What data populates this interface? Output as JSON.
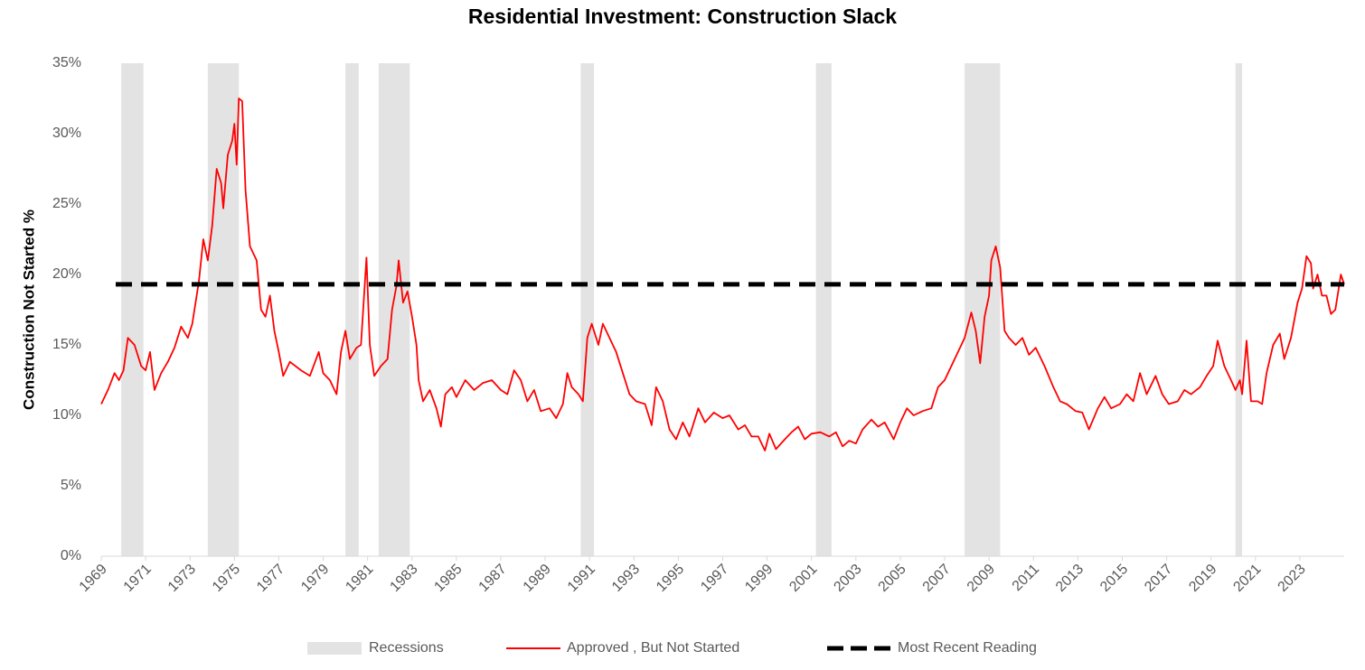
{
  "chart_data": {
    "type": "line",
    "title": "Residential Investment: Construction Slack",
    "y_label": "Construction  Not Started %",
    "xlim": [
      1969,
      2025
    ],
    "xticks": [
      1969,
      1971,
      1973,
      1975,
      1977,
      1979,
      1981,
      1983,
      1985,
      1987,
      1989,
      1991,
      1993,
      1995,
      1997,
      1999,
      2001,
      2003,
      2005,
      2007,
      2009,
      2011,
      2013,
      2015,
      2017,
      2019,
      2021,
      2023
    ],
    "ylim": [
      0,
      35
    ],
    "yticks": [
      {
        "value": 0,
        "label": "0%"
      },
      {
        "value": 5,
        "label": "5%"
      },
      {
        "value": 10,
        "label": "10%"
      },
      {
        "value": 15,
        "label": "15%"
      },
      {
        "value": 20,
        "label": "20%"
      },
      {
        "value": 25,
        "label": "25%"
      },
      {
        "value": 30,
        "label": "30%"
      },
      {
        "value": 35,
        "label": "35%"
      }
    ],
    "recessions": {
      "name": "Recessions",
      "color": "#e3e3e3",
      "ranges": [
        [
          1969.9,
          1970.9
        ],
        [
          1973.8,
          1975.2
        ],
        [
          1980.0,
          1980.6
        ],
        [
          1981.5,
          1982.9
        ],
        [
          1990.6,
          1991.2
        ],
        [
          2001.2,
          2001.9
        ],
        [
          2007.9,
          2009.5
        ],
        [
          2020.1,
          2020.4
        ]
      ]
    },
    "reference": {
      "name": "Most Recent Reading",
      "value": 19.3,
      "color": "#000000"
    },
    "series": [
      {
        "name": "Approved , But Not Started",
        "color": "#ff0000",
        "x": [
          1969.0,
          1969.3,
          1969.6,
          1969.8,
          1970.0,
          1970.2,
          1970.5,
          1970.8,
          1971.0,
          1971.2,
          1971.4,
          1971.7,
          1972.0,
          1972.3,
          1972.6,
          1972.9,
          1973.1,
          1973.4,
          1973.6,
          1973.8,
          1974.0,
          1974.2,
          1974.4,
          1974.5,
          1974.7,
          1974.9,
          1975.0,
          1975.1,
          1975.2,
          1975.35,
          1975.5,
          1975.7,
          1976.0,
          1976.2,
          1976.4,
          1976.6,
          1976.8,
          1977.0,
          1977.2,
          1977.5,
          1978.0,
          1978.4,
          1978.8,
          1979.0,
          1979.3,
          1979.6,
          1979.8,
          1980.0,
          1980.2,
          1980.5,
          1980.7,
          1980.95,
          1981.1,
          1981.3,
          1981.6,
          1981.9,
          1982.1,
          1982.3,
          1982.4,
          1982.6,
          1982.8,
          1983.0,
          1983.2,
          1983.3,
          1983.5,
          1983.8,
          1984.1,
          1984.3,
          1984.5,
          1984.8,
          1985.0,
          1985.4,
          1985.8,
          1986.2,
          1986.6,
          1987.0,
          1987.3,
          1987.6,
          1987.9,
          1988.2,
          1988.5,
          1988.8,
          1989.2,
          1989.5,
          1989.8,
          1990.0,
          1990.2,
          1990.5,
          1990.7,
          1990.9,
          1991.1,
          1991.4,
          1991.6,
          1991.9,
          1992.2,
          1992.5,
          1992.8,
          1993.1,
          1993.5,
          1993.8,
          1994.0,
          1994.3,
          1994.6,
          1994.9,
          1995.2,
          1995.5,
          1995.9,
          1996.2,
          1996.6,
          1997.0,
          1997.3,
          1997.7,
          1998.0,
          1998.3,
          1998.6,
          1998.9,
          1999.1,
          1999.4,
          1999.8,
          2000.1,
          2000.4,
          2000.7,
          2001.0,
          2001.4,
          2001.8,
          2002.1,
          2002.4,
          2002.7,
          2003.0,
          2003.3,
          2003.7,
          2004.0,
          2004.3,
          2004.7,
          2005.0,
          2005.3,
          2005.6,
          2006.0,
          2006.4,
          2006.7,
          2007.0,
          2007.3,
          2007.6,
          2007.9,
          2008.2,
          2008.4,
          2008.6,
          2008.8,
          2009.0,
          2009.1,
          2009.3,
          2009.5,
          2009.7,
          2009.9,
          2010.2,
          2010.5,
          2010.8,
          2011.1,
          2011.5,
          2011.9,
          2012.2,
          2012.5,
          2012.9,
          2013.2,
          2013.5,
          2013.9,
          2014.2,
          2014.5,
          2014.9,
          2015.2,
          2015.5,
          2015.8,
          2016.1,
          2016.5,
          2016.8,
          2017.1,
          2017.5,
          2017.8,
          2018.1,
          2018.5,
          2018.8,
          2019.1,
          2019.3,
          2019.6,
          2019.9,
          2020.1,
          2020.3,
          2020.4,
          2020.6,
          2020.8,
          2021.1,
          2021.3,
          2021.5,
          2021.8,
          2022.1,
          2022.3,
          2022.6,
          2022.9,
          2023.1,
          2023.3,
          2023.5,
          2023.6,
          2023.8,
          2024.0,
          2024.2,
          2024.4,
          2024.6,
          2024.75,
          2024.85,
          2025.0
        ],
        "values": [
          10.8,
          11.8,
          13.0,
          12.5,
          13.2,
          15.5,
          15.0,
          13.5,
          13.2,
          14.5,
          11.8,
          13.0,
          13.8,
          14.8,
          16.3,
          15.5,
          16.5,
          19.5,
          22.5,
          21.0,
          23.5,
          27.5,
          26.5,
          24.7,
          28.5,
          29.5,
          30.7,
          27.8,
          32.5,
          32.3,
          26.0,
          22.0,
          21.0,
          17.5,
          17.0,
          18.5,
          16.0,
          14.5,
          12.8,
          13.8,
          13.2,
          12.8,
          14.5,
          13.0,
          12.5,
          11.5,
          14.5,
          16.0,
          14.0,
          14.8,
          15.0,
          21.2,
          15.0,
          12.8,
          13.5,
          14.0,
          17.5,
          19.2,
          21.0,
          18.0,
          18.8,
          17.0,
          15.0,
          12.5,
          11.0,
          11.8,
          10.5,
          9.2,
          11.5,
          12.0,
          11.3,
          12.5,
          11.8,
          12.3,
          12.5,
          11.8,
          11.5,
          13.2,
          12.5,
          11.0,
          11.8,
          10.3,
          10.5,
          9.8,
          10.8,
          13.0,
          12.0,
          11.5,
          11.0,
          15.5,
          16.5,
          15.0,
          16.5,
          15.5,
          14.5,
          13.0,
          11.5,
          11.0,
          10.8,
          9.3,
          12.0,
          11.0,
          9.0,
          8.3,
          9.5,
          8.5,
          10.5,
          9.5,
          10.2,
          9.8,
          10.0,
          9.0,
          9.3,
          8.5,
          8.5,
          7.5,
          8.7,
          7.6,
          8.3,
          8.8,
          9.2,
          8.3,
          8.7,
          8.8,
          8.5,
          8.8,
          7.8,
          8.2,
          8.0,
          9.0,
          9.7,
          9.2,
          9.5,
          8.3,
          9.5,
          10.5,
          10.0,
          10.3,
          10.5,
          12.0,
          12.5,
          13.5,
          14.5,
          15.5,
          17.3,
          16.0,
          13.7,
          17.0,
          18.5,
          21.0,
          22.0,
          20.5,
          16.0,
          15.5,
          15.0,
          15.5,
          14.3,
          14.8,
          13.5,
          12.0,
          11.0,
          10.8,
          10.3,
          10.2,
          9.0,
          10.5,
          11.3,
          10.5,
          10.8,
          11.5,
          11.0,
          13.0,
          11.5,
          12.8,
          11.5,
          10.8,
          11.0,
          11.8,
          11.5,
          12.0,
          12.8,
          13.5,
          15.3,
          13.5,
          12.5,
          11.8,
          12.5,
          11.5,
          15.3,
          11.0,
          11.0,
          10.8,
          13.0,
          15.0,
          15.8,
          14.0,
          15.5,
          18.0,
          19.0,
          21.3,
          20.8,
          19.0,
          20.0,
          18.5,
          18.5,
          17.2,
          17.5,
          19.0,
          20.0,
          19.3
        ]
      }
    ]
  }
}
